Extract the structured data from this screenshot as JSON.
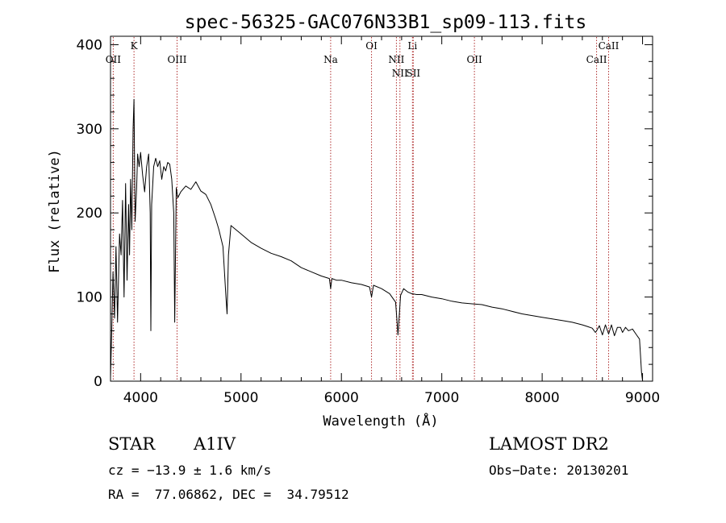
{
  "chart_data": {
    "type": "line",
    "title": "spec-56325-GAC076N33B1_sp09-113.fits",
    "xlabel": "Wavelength (Å)",
    "ylabel": "Flux (relative)",
    "xlim": [
      3700,
      9100
    ],
    "ylim": [
      0,
      410
    ],
    "xticks": [
      4000,
      5000,
      6000,
      7000,
      8000,
      9000
    ],
    "yticks": [
      0,
      100,
      200,
      300,
      400
    ],
    "grid": false,
    "lines": [
      {
        "label": "K",
        "x": 3934,
        "row": 1
      },
      {
        "label": "OII",
        "x": 3727,
        "row": 2
      },
      {
        "label": "OIII",
        "x": 4363,
        "row": 2
      },
      {
        "label": "Na",
        "x": 5893,
        "row": 2
      },
      {
        "label": "OI",
        "x": 6300,
        "row": 1
      },
      {
        "label": "NII",
        "x": 6548,
        "row": 2
      },
      {
        "label": "NII",
        "x": 6583,
        "row": 3
      },
      {
        "label": "Li",
        "x": 6708,
        "row": 1
      },
      {
        "label": "SII",
        "x": 6716,
        "row": 3
      },
      {
        "label": "OII",
        "x": 7325,
        "row": 2
      },
      {
        "label": "CaII",
        "x": 8542,
        "row": 2
      },
      {
        "label": "CaII",
        "x": 8662,
        "row": 1
      }
    ],
    "series": [
      {
        "x": [
          3700,
          3712,
          3725,
          3740,
          3755,
          3770,
          3790,
          3805,
          3820,
          3835,
          3850,
          3865,
          3880,
          3890,
          3900,
          3912,
          3925,
          3934,
          3945,
          3960,
          3970,
          3985,
          4000,
          4020,
          4040,
          4060,
          4080,
          4095,
          4102,
          4110,
          4130,
          4150,
          4170,
          4190,
          4210,
          4230,
          4250,
          4270,
          4290,
          4310,
          4330,
          4340,
          4355,
          4370,
          4400,
          4450,
          4500,
          4550,
          4600,
          4650,
          4700,
          4750,
          4780,
          4820,
          4850,
          4861,
          4875,
          4900,
          4950,
          5000,
          5100,
          5200,
          5300,
          5400,
          5500,
          5600,
          5700,
          5800,
          5880,
          5893,
          5905,
          5950,
          6000,
          6100,
          6200,
          6280,
          6300,
          6320,
          6400,
          6480,
          6540,
          6555,
          6563,
          6572,
          6590,
          6620,
          6660,
          6700,
          6750,
          6800,
          6900,
          7000,
          7100,
          7200,
          7300,
          7400,
          7500,
          7600,
          7700,
          7800,
          7900,
          8000,
          8100,
          8200,
          8300,
          8400,
          8450,
          8498,
          8530,
          8542,
          8570,
          8600,
          8630,
          8662,
          8690,
          8720,
          8750,
          8780,
          8800,
          8830,
          8860,
          8900,
          8940,
          8970,
          8990,
          9000
        ],
        "y": [
          5,
          60,
          130,
          75,
          160,
          70,
          175,
          150,
          215,
          100,
          235,
          120,
          210,
          150,
          240,
          180,
          300,
          335,
          190,
          230,
          270,
          255,
          272,
          245,
          225,
          255,
          270,
          200,
          60,
          210,
          255,
          265,
          255,
          262,
          240,
          255,
          250,
          260,
          258,
          240,
          200,
          70,
          230,
          218,
          225,
          232,
          228,
          237,
          226,
          222,
          210,
          192,
          180,
          160,
          100,
          80,
          150,
          185,
          180,
          175,
          165,
          158,
          152,
          148,
          143,
          135,
          130,
          125,
          122,
          110,
          122,
          120,
          120,
          117,
          115,
          112,
          100,
          114,
          110,
          104,
          94,
          70,
          55,
          70,
          102,
          110,
          106,
          104,
          103,
          103,
          100,
          98,
          95,
          93,
          92,
          91,
          88,
          86,
          83,
          80,
          78,
          76,
          74,
          72,
          70,
          67,
          65,
          63,
          58,
          60,
          66,
          55,
          67,
          56,
          67,
          54,
          64,
          64,
          58,
          64,
          60,
          62,
          55,
          50,
          10,
          0
        ]
      }
    ]
  },
  "info": {
    "object_class": "STAR",
    "subclass": "A1IV",
    "survey": "LAMOST DR2",
    "redshift": "cz = −13.9 ± 1.6 km/s",
    "obs_date": "Obs−Date: 20130201",
    "coords": "RA =  77.06862, DEC =  34.79512"
  }
}
